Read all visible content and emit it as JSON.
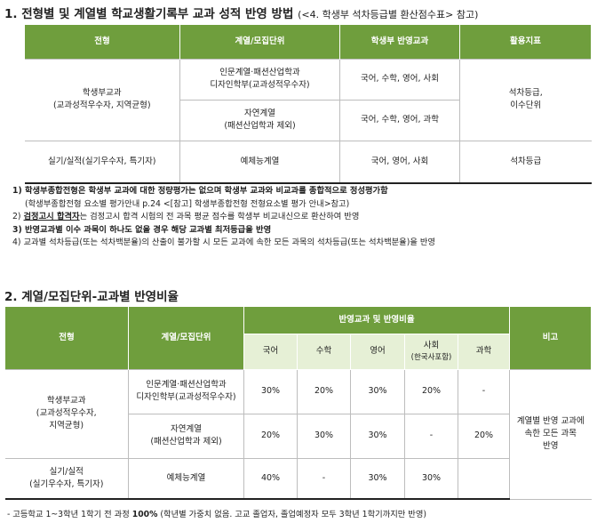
{
  "section1": {
    "title": "1. 전형별 및 계열별 학교생활기록부 교과 성적 반영 방법",
    "subtitle": "(<4. 학생부 석차등급별 환산점수표> 참고)",
    "headers": [
      "전형",
      "계열/모집단위",
      "학생부 반영교과",
      "활용지표"
    ],
    "rows": [
      {
        "type_main": "학생부교과",
        "type_sub": "(교과성적우수자, 지역균형)",
        "unit1_l1": "인문계열·패션산업학과",
        "unit1_l2": "디자인학부(교과성적우수자)",
        "subj1": "국어, 수학, 영어, 사회",
        "unit2_l1": "자연계열",
        "unit2_l2": "(패션산업학과 제외)",
        "subj2": "국어, 수학, 영어, 과학",
        "indicator_l1": "석차등급,",
        "indicator_l2": "이수단위"
      },
      {
        "type_main": "실기/실적",
        "type_sub": "(실기우수자, 특기자)",
        "unit": "예체능계열",
        "subj": "국어, 영어, 사회",
        "indicator": "석차등급"
      }
    ]
  },
  "notes": {
    "n1_bold": "1) 학생부종합전형은 학생부 교과에 대한 정량평가는 없으며 학생부 교과와 비교과를 종합적으로 정성평가함",
    "n1_sub": "(학생부종합전형 요소별 평가안내 p.24 <[참고] 학생부종합전형 전형요소별 평가 안내>참고)",
    "n2_prefix": "2) ",
    "n2_bold": "검정고시 합격자",
    "n2_rest": "는 검정고시 합격 시험의 전 과목 평균 점수를 학생부 비교내신으로 환산하여 반영",
    "n3_bold": "3) 반영교과별 이수 과목이 하나도 없을 경우 해당 교과별 최저등급을 반영",
    "n4": "4) 교과별 석차등급(또는 석차백분율)의 산출이 불가할 시 모든 교과에 속한 모든 과목의 석차등급(또는 석차백분율)을 반영"
  },
  "section2": {
    "title": "2. 계열/모집단위-교과별 반영비율",
    "headers": {
      "type": "전형",
      "unit": "계열/모집단위",
      "group": "반영교과 및 반영비율",
      "note": "비고"
    },
    "subjects": [
      "국어",
      "수학",
      "영어",
      "사회",
      "과학"
    ],
    "subject_social_sub": "(한국사포함)",
    "rows": [
      {
        "type_main": "학생부교과",
        "type_sub1": "(교과성적우수자,",
        "type_sub2": "지역균형)",
        "unit1_l1": "인문계열·패션산업학과",
        "unit1_l2": "디자인학부(교과성적우수자)",
        "r1": [
          "30%",
          "20%",
          "30%",
          "20%",
          "-"
        ],
        "unit2_l1": "자연계열",
        "unit2_l2": "(패션산업학과 제외)",
        "r2": [
          "20%",
          "30%",
          "30%",
          "-",
          "20%"
        ]
      },
      {
        "type_main": "실기/실적",
        "type_sub": "(실기우수자, 특기자)",
        "unit": "예체능계열",
        "r": [
          "40%",
          "-",
          "30%",
          "30%",
          ""
        ]
      }
    ],
    "note_l1": "계열별 반영 교과에",
    "note_l2": "속한 모든 과목",
    "note_l3": "반영"
  },
  "footer": {
    "prefix": "- 고등학교 1~3학년 1학기 전 과정 ",
    "bold": "100%",
    "rest": " (학년별 가중치 없음. 고교 졸업자, 졸업예정자 모두 3학년 1학기까지만 반영)"
  }
}
